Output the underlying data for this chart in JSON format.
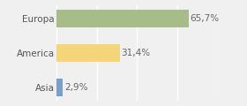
{
  "categories": [
    "Europa",
    "America",
    "Asia"
  ],
  "values": [
    65.7,
    31.4,
    2.9
  ],
  "labels": [
    "65,7%",
    "31,4%",
    "2,9%"
  ],
  "bar_colors": [
    "#a8bc8a",
    "#f5d57a",
    "#7a9fcb"
  ],
  "background_color": "#f0f0f0",
  "xlim": [
    0,
    78
  ],
  "label_fontsize": 7.5,
  "tick_fontsize": 7.5,
  "bar_height": 0.52
}
